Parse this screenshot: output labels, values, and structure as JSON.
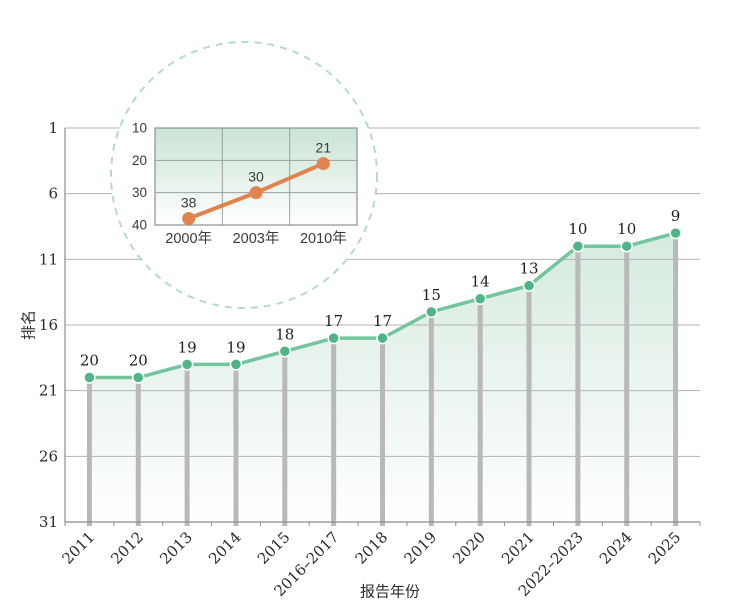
{
  "figure": {
    "background": "#ffffff"
  },
  "chart_data": [
    {
      "id": "main-ranking-trend",
      "type": "line",
      "categories": [
        "2011",
        "2012",
        "2013",
        "2014",
        "2015",
        "2016–2017",
        "2018",
        "2019",
        "2020",
        "2021",
        "2022–2023",
        "2024",
        "2025"
      ],
      "values": [
        20,
        20,
        19,
        19,
        18,
        17,
        17,
        15,
        14,
        13,
        10,
        10,
        9
      ],
      "xlabel": "报告年份",
      "ylabel": "排名",
      "yticks": [
        1,
        6,
        11,
        16,
        21,
        26,
        31
      ],
      "ylim": [
        1,
        31
      ],
      "y_axis_inverted": true,
      "grid": true,
      "legend": "none",
      "data_labels": true,
      "line_color": "#72c59d",
      "marker_color": "#4fb586",
      "marker_ring_color": "#ffffff",
      "area_gradient_top": "#c6e3d2",
      "area_gradient_bottom": "#ffffff",
      "dropline_color": "#b9b9b9",
      "gridline_color": "#b3b3b3",
      "axis_color": "#8c8c8c",
      "text_color": "#2b2b2b"
    },
    {
      "id": "inset-early-years",
      "type": "line",
      "categories": [
        "2000年",
        "2003年",
        "2010年"
      ],
      "values": [
        38,
        30,
        21
      ],
      "yticks": [
        10,
        20,
        30,
        40
      ],
      "ylim": [
        10,
        40
      ],
      "y_axis_inverted": true,
      "grid": true,
      "data_labels": true,
      "line_color": "#e2834e",
      "marker_color": "#e2834e",
      "plot_gradient_top": "#c9e4d4",
      "plot_gradient_bottom": "#ffffff",
      "gridline_color": "#9e9e9e",
      "frame": "dashed-circle",
      "circle_border_color": "#b5dcc8",
      "circle_fill": "#ffffff",
      "text_color": "#3a3a3a"
    }
  ]
}
